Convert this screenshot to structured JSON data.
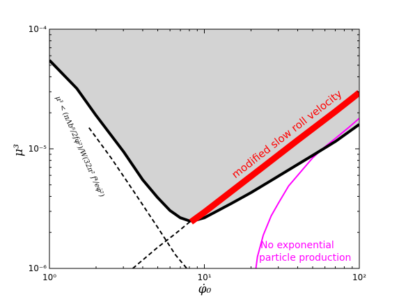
{
  "chart_data": {
    "type": "line",
    "title": "",
    "xlabel": "φ̇₀",
    "ylabel": "μ³",
    "xscale": "log",
    "yscale": "log",
    "xlim": [
      1,
      100
    ],
    "ylim": [
      1e-06,
      0.0001
    ],
    "grid": false,
    "x_ticks": [
      {
        "value": 1,
        "label": "10⁰"
      },
      {
        "value": 10,
        "label": "10¹"
      },
      {
        "value": 100,
        "label": "10²"
      }
    ],
    "y_ticks": [
      {
        "value": 1e-06,
        "label": "10⁻⁶"
      },
      {
        "value": 1e-05,
        "label": "10⁻⁵"
      },
      {
        "value": 0.0001,
        "label": "10⁻⁴"
      }
    ],
    "series": [
      {
        "role": "shaded-region-boundary",
        "color": "#000000",
        "style": "solid-thick",
        "fill": "#d3d3d3",
        "x": [
          1,
          1.5,
          2,
          3,
          4,
          5,
          6,
          7,
          8,
          8.5,
          10,
          12,
          15,
          20,
          30,
          40,
          50,
          70,
          100
        ],
        "y": [
          5.5e-05,
          3.2e-05,
          1.9e-05,
          9.5e-06,
          5.5e-06,
          3.9e-06,
          3.05e-06,
          2.65e-06,
          2.5e-06,
          2.5e-06,
          2.65e-06,
          3e-06,
          3.5e-06,
          4.3e-06,
          5.9e-06,
          7.4e-06,
          8.8e-06,
          1.15e-05,
          1.6e-05
        ]
      },
      {
        "role": "bound-dashed-1",
        "color": "#000000",
        "style": "dashed",
        "x": [
          1.8,
          2.5,
          3.5,
          5,
          6.5,
          7.7
        ],
        "y": [
          1.5e-05,
          8.4e-06,
          4.4e-06,
          2.2e-06,
          1.3e-06,
          1e-06
        ]
      },
      {
        "role": "bound-dashed-2",
        "color": "#000000",
        "style": "dashed",
        "x": [
          3.45,
          5,
          6.5,
          8.2
        ],
        "y": [
          1e-06,
          1.5e-06,
          1.95e-06,
          2.5e-06
        ]
      },
      {
        "role": "modified-slow-roll",
        "color": "#ff0000",
        "style": "solid-very-thick",
        "x": [
          8.2,
          10,
          20,
          40,
          70,
          100
        ],
        "y": [
          2.45e-06,
          2.95e-06,
          5.9e-06,
          1.18e-05,
          2.05e-05,
          2.95e-05
        ]
      },
      {
        "role": "no-particle-production",
        "color": "#ff00ff",
        "style": "solid",
        "x": [
          21.5,
          22,
          24,
          27,
          30,
          35,
          40,
          50,
          60,
          70,
          85,
          100
        ],
        "y": [
          1e-06,
          1.25e-06,
          1.9e-06,
          2.75e-06,
          3.5e-06,
          4.9e-06,
          6e-06,
          8.4e-06,
          1.04e-05,
          1.22e-05,
          1.5e-05,
          1.8e-05
        ]
      }
    ],
    "annotations": [
      {
        "text": "modified slow roll velocity",
        "color": "#ff0000"
      },
      {
        "text": "No exponential",
        "color": "#ff00ff"
      },
      {
        "text": "particle production",
        "color": "#ff00ff"
      },
      {
        "text": "μ³ < (πΛb⁸/2fφ̇²)/W(32π² f⁴/eφ̇²)",
        "color": "#000000"
      }
    ]
  }
}
